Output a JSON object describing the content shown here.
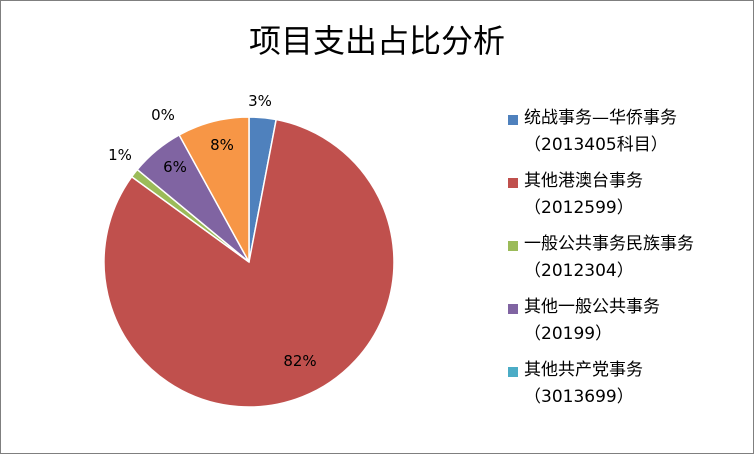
{
  "chart_data": {
    "type": "pie",
    "title": "项目支出占比分析",
    "slices": [
      {
        "label_line1": "统战事务—华侨事务",
        "label_line2": "（2013405科目）",
        "value": 3,
        "data_label": "3%",
        "color": "#4f81bd"
      },
      {
        "label_line1": "其他港澳台事务",
        "label_line2": "（2012599）",
        "value": 82,
        "data_label": "82%",
        "color": "#c0504d"
      },
      {
        "label_line1": "一般公共事务民族事务",
        "label_line2": "（2012304）",
        "value": 1,
        "data_label": "1%",
        "color": "#9bbb59"
      },
      {
        "label_line1": "其他一般公共事务",
        "label_line2": "（20199）",
        "value": 6,
        "data_label": "6%",
        "color": "#8064a2"
      },
      {
        "label_line1": "其他共产党事务",
        "label_line2": "（3013699）",
        "value": 0,
        "data_label": "0%",
        "color": "#4bacc6"
      },
      {
        "label_line1": "",
        "label_line2": "",
        "value": 8,
        "data_label": "8%",
        "color": "#f79646"
      }
    ],
    "legend_position": "right"
  }
}
